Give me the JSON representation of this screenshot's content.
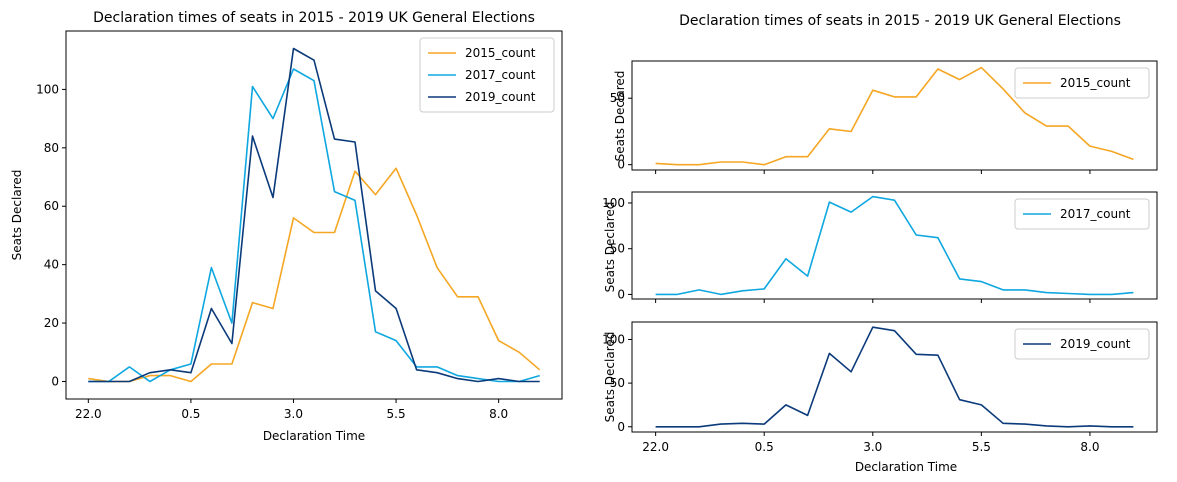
{
  "chart_data": [
    {
      "type": "line",
      "title": "Declaration times of seats in 2015 - 2019 UK General Elections",
      "xlabel": "Declaration Time",
      "ylabel": "Seats Declared",
      "x": [
        22.0,
        22.5,
        23.0,
        23.5,
        0.0,
        0.5,
        1.0,
        1.5,
        2.0,
        2.5,
        3.0,
        3.5,
        4.0,
        4.5,
        5.0,
        5.5,
        6.0,
        6.5,
        7.0,
        7.5,
        8.0,
        8.5,
        9.0
      ],
      "x_ticks": [
        "22.0",
        "0.5",
        "3.0",
        "5.5",
        "8.0"
      ],
      "y_ticks": [
        "0",
        "20",
        "40",
        "60",
        "80",
        "100"
      ],
      "ylim": [
        -6,
        120
      ],
      "legend": "top-right",
      "series": [
        {
          "name": "2015_count",
          "color": "#f5a623",
          "values": [
            1,
            0,
            0,
            2,
            2,
            0,
            6,
            6,
            27,
            25,
            56,
            51,
            51,
            72,
            64,
            73,
            57,
            39,
            29,
            29,
            14,
            10,
            4
          ]
        },
        {
          "name": "2017_count",
          "color": "#0ea7e0",
          "values": [
            0,
            0,
            5,
            0,
            4,
            6,
            39,
            20,
            101,
            90,
            107,
            103,
            65,
            62,
            17,
            14,
            5,
            5,
            2,
            1,
            0,
            0,
            2
          ]
        },
        {
          "name": "2019_count",
          "color": "#0b3a7a",
          "values": [
            0,
            0,
            0,
            3,
            4,
            3,
            25,
            13,
            84,
            63,
            114,
            110,
            83,
            82,
            31,
            25,
            4,
            3,
            1,
            0,
            1,
            0,
            0
          ]
        }
      ]
    },
    {
      "type": "line",
      "title": "Declaration times of seats in 2015 - 2019 UK General Elections",
      "xlabel": "Declaration Time",
      "x_ticks": [
        "22.0",
        "0.5",
        "3.0",
        "5.5",
        "8.0"
      ],
      "subplots": [
        {
          "ylabel": "Seats Declared",
          "series_index": 0,
          "ylim": [
            -4,
            78
          ],
          "y_ticks": [
            "0",
            "50"
          ]
        },
        {
          "ylabel": "Seats Declared",
          "series_index": 1,
          "ylim": [
            -5,
            112
          ],
          "y_ticks": [
            "0",
            "50",
            "100"
          ]
        },
        {
          "ylabel": "Seats Declared",
          "series_index": 2,
          "ylim": [
            -6,
            120
          ],
          "y_ticks": [
            "0",
            "50",
            "100"
          ]
        }
      ]
    }
  ]
}
